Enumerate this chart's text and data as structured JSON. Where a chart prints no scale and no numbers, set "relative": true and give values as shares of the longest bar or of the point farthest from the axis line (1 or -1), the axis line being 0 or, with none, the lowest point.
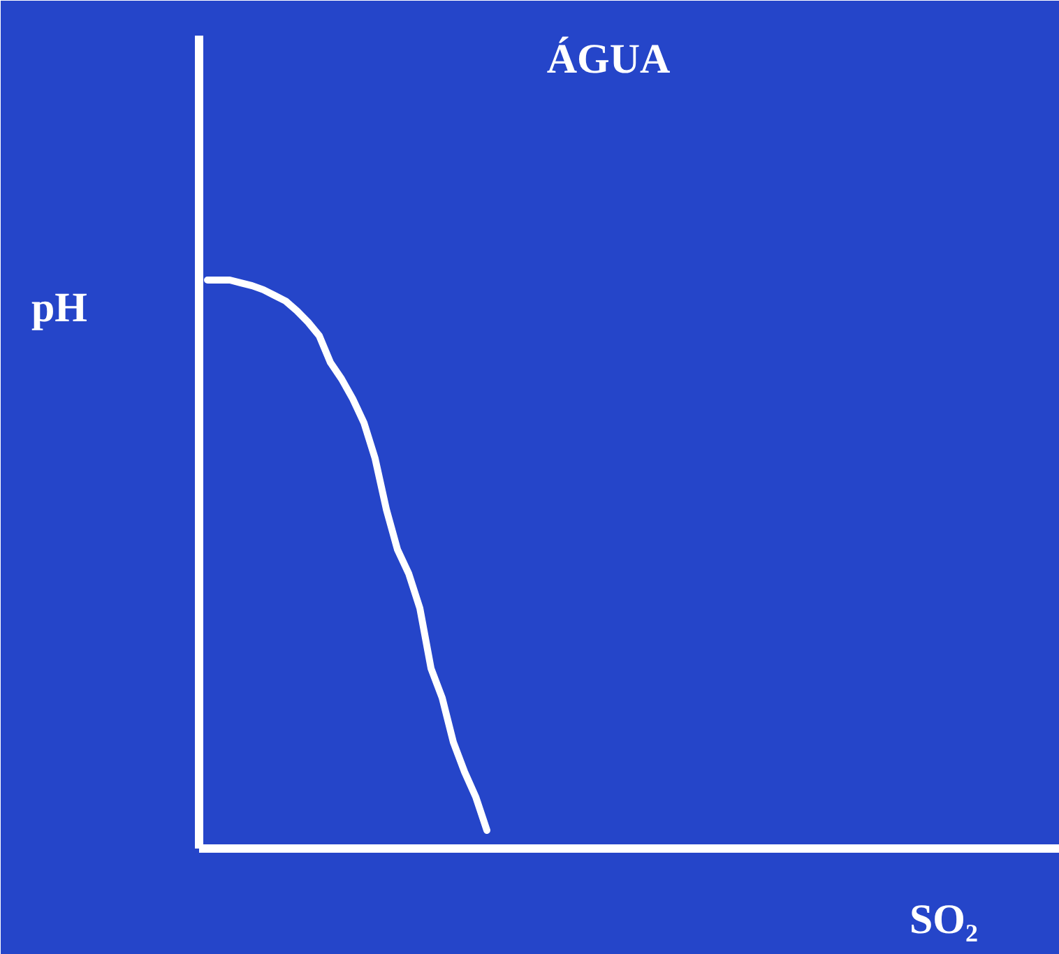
{
  "chart_data": {
    "type": "line",
    "title": "ÁGUA",
    "xlabel": "SO₂",
    "ylabel": "pH",
    "relative": true,
    "line_style": "solid",
    "categories": [
      null,
      null,
      null,
      null,
      null,
      null,
      null,
      null,
      null,
      null,
      null,
      null,
      null,
      null,
      null,
      null,
      null,
      null,
      null,
      null,
      null,
      null,
      null,
      null,
      null,
      null,
      null,
      null,
      null,
      null,
      null,
      null,
      null,
      null,
      null,
      null,
      null,
      null,
      null,
      null,
      null,
      null,
      null,
      null,
      null,
      null,
      null,
      null,
      null,
      null,
      null,
      null,
      null,
      null,
      null,
      null,
      null,
      null,
      null,
      null,
      null,
      null,
      null,
      null,
      null,
      null,
      null,
      null,
      null,
      null,
      null,
      null,
      null,
      null,
      null,
      null,
      null
    ],
    "series": [
      {
        "color": "#ffffff",
        "values": [
          1.0,
          1.0,
          1.0,
          0.995,
          0.99,
          0.983,
          0.973,
          0.963,
          0.946,
          0.926,
          0.902,
          0.855,
          0.826,
          0.791,
          0.749,
          0.686,
          0.597,
          0.526,
          0.484,
          0.423,
          0.317,
          0.265,
          0.187,
          0.135,
          0.091,
          0.032,
          null,
          null,
          null,
          null,
          null,
          null,
          null,
          null,
          null,
          null,
          null,
          null,
          null,
          null,
          null,
          null,
          null,
          null,
          null,
          null,
          null,
          null,
          null,
          null,
          null,
          null,
          null,
          null,
          null,
          null,
          null,
          null,
          null,
          null,
          null,
          null,
          null,
          null,
          null,
          null,
          null,
          null,
          null,
          null,
          null,
          null,
          null,
          null,
          null,
          null,
          null
        ]
      }
    ]
  }
}
